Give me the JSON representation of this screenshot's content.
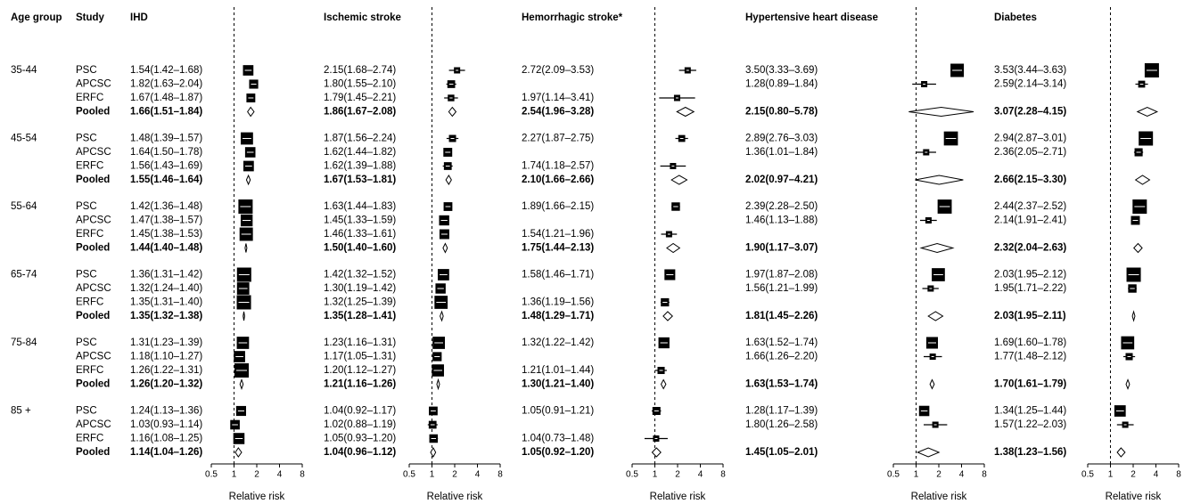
{
  "age_group_header": "Age group",
  "study_header": "Study",
  "age_groups": [
    "35-44",
    "45-54",
    "55-64",
    "65-74",
    "75-84",
    "85 +"
  ],
  "studies": [
    "PSC",
    "APCSC",
    "ERFC",
    "Pooled"
  ],
  "chart_data": [
    {
      "type": "forest",
      "title": "IHD",
      "xlabel": "Relative risk",
      "log_x": true,
      "xlim": [
        0.5,
        8
      ],
      "xticks": [
        0.5,
        1,
        2,
        4,
        8
      ],
      "reference_line": 1,
      "color": "#000000",
      "values": [
        1.54,
        1.82,
        1.67,
        1.66,
        1.48,
        1.64,
        1.56,
        1.55,
        1.42,
        1.47,
        1.45,
        1.44,
        1.36,
        1.32,
        1.35,
        1.35,
        1.31,
        1.18,
        1.26,
        1.26,
        1.24,
        1.03,
        1.16,
        1.14
      ],
      "lower": [
        1.42,
        1.63,
        1.48,
        1.51,
        1.39,
        1.5,
        1.43,
        1.46,
        1.36,
        1.38,
        1.38,
        1.4,
        1.31,
        1.24,
        1.31,
        1.32,
        1.23,
        1.1,
        1.22,
        1.2,
        1.13,
        0.93,
        1.08,
        1.04
      ],
      "upper": [
        1.68,
        2.04,
        1.87,
        1.84,
        1.57,
        1.78,
        1.69,
        1.64,
        1.48,
        1.57,
        1.53,
        1.48,
        1.42,
        1.4,
        1.4,
        1.38,
        1.39,
        1.27,
        1.31,
        1.32,
        1.36,
        1.14,
        1.25,
        1.26
      ],
      "value_labels": [
        "1.54(1.42–1.68)",
        "1.82(1.63–2.04)",
        "1.67(1.48–1.87)",
        "1.66(1.51–1.84)",
        "1.48(1.39–1.57)",
        "1.64(1.50–1.78)",
        "1.56(1.43–1.69)",
        "1.55(1.46–1.64)",
        "1.42(1.36–1.48)",
        "1.47(1.38–1.57)",
        "1.45(1.38–1.53)",
        "1.44(1.40–1.48)",
        "1.36(1.31–1.42)",
        "1.32(1.24–1.40)",
        "1.35(1.31–1.40)",
        "1.35(1.32–1.38)",
        "1.31(1.23–1.39)",
        "1.18(1.10–1.27)",
        "1.26(1.22–1.31)",
        "1.26(1.20–1.32)",
        "1.24(1.13–1.36)",
        "1.03(0.93–1.14)",
        "1.16(1.08–1.25)",
        "1.14(1.04–1.26)"
      ]
    },
    {
      "type": "forest",
      "title": "Ischemic stroke",
      "xlabel": "Relative risk",
      "log_x": true,
      "xlim": [
        0.5,
        8
      ],
      "xticks": [
        0.5,
        1,
        2,
        4,
        8
      ],
      "reference_line": 1,
      "color": "#000000",
      "values": [
        2.15,
        1.8,
        1.79,
        1.86,
        1.87,
        1.62,
        1.62,
        1.67,
        1.63,
        1.45,
        1.46,
        1.5,
        1.42,
        1.3,
        1.32,
        1.35,
        1.23,
        1.17,
        1.2,
        1.21,
        1.04,
        1.02,
        1.05,
        1.04
      ],
      "lower": [
        1.68,
        1.55,
        1.45,
        1.67,
        1.56,
        1.44,
        1.39,
        1.53,
        1.44,
        1.33,
        1.33,
        1.4,
        1.32,
        1.19,
        1.25,
        1.28,
        1.16,
        1.05,
        1.12,
        1.16,
        0.92,
        0.88,
        0.93,
        0.96
      ],
      "upper": [
        2.74,
        2.1,
        2.21,
        2.08,
        2.24,
        1.82,
        1.88,
        1.81,
        1.83,
        1.59,
        1.61,
        1.6,
        1.52,
        1.42,
        1.39,
        1.41,
        1.31,
        1.31,
        1.27,
        1.26,
        1.17,
        1.19,
        1.2,
        1.12
      ],
      "value_labels": [
        "2.15(1.68–2.74)",
        "1.80(1.55–2.10)",
        "1.79(1.45–2.21)",
        "1.86(1.67–2.08)",
        "1.87(1.56–2.24)",
        "1.62(1.44–1.82)",
        "1.62(1.39–1.88)",
        "1.67(1.53–1.81)",
        "1.63(1.44–1.83)",
        "1.45(1.33–1.59)",
        "1.46(1.33–1.61)",
        "1.50(1.40–1.60)",
        "1.42(1.32–1.52)",
        "1.30(1.19–1.42)",
        "1.32(1.25–1.39)",
        "1.35(1.28–1.41)",
        "1.23(1.16–1.31)",
        "1.17(1.05–1.31)",
        "1.20(1.12–1.27)",
        "1.21(1.16–1.26)",
        "1.04(0.92–1.17)",
        "1.02(0.88–1.19)",
        "1.05(0.93–1.20)",
        "1.04(0.96–1.12)"
      ]
    },
    {
      "type": "forest",
      "title": "Hemorrhagic stroke*",
      "xlabel": "Relative risk",
      "log_x": true,
      "xlim": [
        0.5,
        8
      ],
      "xticks": [
        0.5,
        1,
        2,
        4,
        8
      ],
      "reference_line": 1,
      "color": "#000000",
      "values": [
        2.72,
        null,
        1.97,
        2.54,
        2.27,
        null,
        1.74,
        2.1,
        1.89,
        null,
        1.54,
        1.75,
        1.58,
        null,
        1.36,
        1.48,
        1.32,
        null,
        1.21,
        1.3,
        1.05,
        null,
        1.04,
        1.05
      ],
      "lower": [
        2.09,
        null,
        1.14,
        1.96,
        1.87,
        null,
        1.18,
        1.66,
        1.66,
        null,
        1.21,
        1.44,
        1.46,
        null,
        1.19,
        1.29,
        1.22,
        null,
        1.01,
        1.21,
        0.91,
        null,
        0.73,
        0.92
      ],
      "upper": [
        3.53,
        null,
        3.41,
        3.28,
        2.75,
        null,
        2.57,
        2.66,
        2.15,
        null,
        1.96,
        2.13,
        1.71,
        null,
        1.56,
        1.71,
        1.42,
        null,
        1.44,
        1.4,
        1.21,
        null,
        1.48,
        1.2
      ],
      "value_labels": [
        "2.72(2.09–3.53)",
        null,
        "1.97(1.14–3.41)",
        "2.54(1.96–3.28)",
        "2.27(1.87–2.75)",
        null,
        "1.74(1.18–2.57)",
        "2.10(1.66–2.66)",
        "1.89(1.66–2.15)",
        null,
        "1.54(1.21–1.96)",
        "1.75(1.44–2.13)",
        "1.58(1.46–1.71)",
        null,
        "1.36(1.19–1.56)",
        "1.48(1.29–1.71)",
        "1.32(1.22–1.42)",
        null,
        "1.21(1.01–1.44)",
        "1.30(1.21–1.40)",
        "1.05(0.91–1.21)",
        null,
        "1.04(0.73–1.48)",
        "1.05(0.92–1.20)"
      ]
    },
    {
      "type": "forest",
      "title": "Hypertensive heart disease",
      "xlabel": "Relative risk",
      "log_x": true,
      "xlim": [
        0.5,
        8
      ],
      "xticks": [
        0.5,
        1,
        2,
        4,
        8
      ],
      "reference_line": 1,
      "color": "#000000",
      "values": [
        3.5,
        1.28,
        null,
        2.15,
        2.89,
        1.36,
        null,
        2.02,
        2.39,
        1.46,
        null,
        1.9,
        1.97,
        1.56,
        null,
        1.81,
        1.63,
        1.66,
        null,
        1.63,
        1.28,
        1.8,
        null,
        1.45
      ],
      "lower": [
        3.33,
        0.89,
        null,
        0.8,
        2.76,
        1.01,
        null,
        0.97,
        2.28,
        1.13,
        null,
        1.17,
        1.87,
        1.21,
        null,
        1.45,
        1.52,
        1.26,
        null,
        1.53,
        1.17,
        1.26,
        null,
        1.05
      ],
      "upper": [
        3.69,
        1.84,
        null,
        5.78,
        3.03,
        1.84,
        null,
        4.21,
        2.5,
        1.88,
        null,
        3.07,
        2.08,
        1.99,
        null,
        2.26,
        1.74,
        2.2,
        null,
        1.74,
        1.39,
        2.58,
        null,
        2.01
      ],
      "value_labels": [
        "3.50(3.33–3.69)",
        "1.28(0.89–1.84)",
        null,
        "2.15(0.80–5.78)",
        "2.89(2.76–3.03)",
        "1.36(1.01–1.84)",
        null,
        "2.02(0.97–4.21)",
        "2.39(2.28–2.50)",
        "1.46(1.13–1.88)",
        null,
        "1.90(1.17–3.07)",
        "1.97(1.87–2.08)",
        "1.56(1.21–1.99)",
        null,
        "1.81(1.45–2.26)",
        "1.63(1.52–1.74)",
        "1.66(1.26–2.20)",
        null,
        "1.63(1.53–1.74)",
        "1.28(1.17–1.39)",
        "1.80(1.26–2.58)",
        null,
        "1.45(1.05–2.01)"
      ]
    },
    {
      "type": "forest",
      "title": "Diabetes",
      "xlabel": "Relative risk",
      "log_x": true,
      "xlim": [
        0.5,
        8
      ],
      "xticks": [
        0.5,
        1,
        2,
        4,
        8
      ],
      "reference_line": 1,
      "color": "#000000",
      "values": [
        3.53,
        2.59,
        null,
        3.07,
        2.94,
        2.36,
        null,
        2.66,
        2.44,
        2.14,
        null,
        2.32,
        2.03,
        1.95,
        null,
        2.03,
        1.69,
        1.77,
        null,
        1.7,
        1.34,
        1.57,
        null,
        1.38
      ],
      "lower": [
        3.44,
        2.14,
        null,
        2.28,
        2.87,
        2.05,
        null,
        2.15,
        2.37,
        1.91,
        null,
        2.04,
        1.95,
        1.71,
        null,
        1.95,
        1.6,
        1.48,
        null,
        1.61,
        1.25,
        1.22,
        null,
        1.23
      ],
      "upper": [
        3.63,
        3.14,
        null,
        4.15,
        3.01,
        2.71,
        null,
        3.3,
        2.52,
        2.41,
        null,
        2.63,
        2.12,
        2.22,
        null,
        2.11,
        1.78,
        2.12,
        null,
        1.79,
        1.44,
        2.03,
        null,
        1.56
      ],
      "value_labels": [
        "3.53(3.44–3.63)",
        "2.59(2.14–3.14)",
        null,
        "3.07(2.28–4.15)",
        "2.94(2.87–3.01)",
        "2.36(2.05–2.71)",
        null,
        "2.66(2.15–3.30)",
        "2.44(2.37–2.52)",
        "2.14(1.91–2.41)",
        null,
        "2.32(2.04–2.63)",
        "2.03(1.95–2.12)",
        "1.95(1.71–2.22)",
        null,
        "2.03(1.95–2.11)",
        "1.69(1.60–1.78)",
        "1.77(1.48–2.12)",
        null,
        "1.70(1.61–1.79)",
        "1.34(1.25–1.44)",
        "1.57(1.22–2.03)",
        null,
        "1.38(1.23–1.56)"
      ]
    }
  ]
}
